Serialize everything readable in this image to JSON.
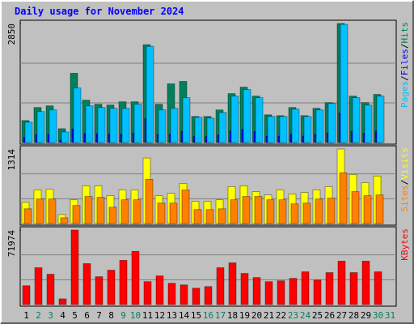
{
  "title": "Daily usage for November 2024",
  "legend_separator": "/",
  "chart_data": [
    {
      "type": "bar",
      "ylim": [
        0,
        2850
      ],
      "yticks": [
        2850
      ],
      "gridlines": [
        950,
        1900
      ],
      "series": [
        {
          "name": "Hits",
          "color": "#00805c",
          "values": [
            527,
            839,
            878,
            332,
            1659,
            1015,
            917,
            898,
            976,
            976,
            2342,
            917,
            1406,
            1464,
            625,
            625,
            781,
            1171,
            1327,
            1112,
            664,
            644,
            839,
            644,
            820,
            957,
            2850,
            1112,
            957,
            1152,
            null
          ]
        },
        {
          "name": "Files",
          "color": "#0000ff",
          "values": [
            122,
            185,
            195,
            63,
            327,
            219,
            210,
            205,
            205,
            229,
            575,
            195,
            205,
            268,
            151,
            146,
            180,
            278,
            317,
            268,
            156,
            156,
            200,
            156,
            195,
            234,
            707,
            268,
            224,
            278,
            null
          ]
        },
        {
          "name": "Pages",
          "color": "#00c0ff",
          "values": [
            488,
            742,
            781,
            254,
            1308,
            878,
            839,
            820,
            820,
            917,
            2303,
            781,
            820,
            1074,
            605,
            586,
            722,
            1112,
            1269,
            1074,
            625,
            625,
            800,
            625,
            781,
            937,
            2830,
            1074,
            898,
            1113,
            null
          ]
        }
      ]
    },
    {
      "type": "bar",
      "ylim": [
        0,
        1314
      ],
      "yticks": [
        1314
      ],
      "gridlines": [
        438,
        876
      ],
      "series": [
        {
          "name": "Visits",
          "color": "#ffff00",
          "values": [
            375,
            592,
            606,
            159,
            419,
            664,
            664,
            491,
            592,
            592,
            1155,
            491,
            534,
            708,
            390,
            390,
            419,
            650,
            664,
            563,
            505,
            592,
            520,
            549,
            592,
            650,
            1314,
            866,
            722,
            838,
            null
          ]
        },
        {
          "name": "Sites",
          "color": "#ff8000",
          "values": [
            260,
            433,
            433,
            101,
            318,
            477,
            462,
            289,
            419,
            419,
            780,
            361,
            361,
            592,
            246,
            246,
            260,
            419,
            477,
            477,
            419,
            419,
            347,
            361,
            433,
            448,
            895,
            563,
            491,
            505,
            null
          ]
        }
      ]
    },
    {
      "type": "bar",
      "ylim": [
        0,
        71974
      ],
      "yticks": [
        71974
      ],
      "gridlines": [
        23991,
        47983
      ],
      "categories": [
        "1",
        "2",
        "3",
        "4",
        "5",
        "6",
        "7",
        "8",
        "9",
        "10",
        "11",
        "12",
        "13",
        "14",
        "15",
        "16",
        "17",
        "18",
        "19",
        "20",
        "21",
        "22",
        "23",
        "24",
        "25",
        "26",
        "27",
        "28",
        "29",
        "30",
        "31"
      ],
      "category_colors": [
        "#000000",
        "#00805c",
        "#00805c",
        "#000000",
        "#000000",
        "#000000",
        "#000000",
        "#000000",
        "#00805c",
        "#00805c",
        "#000000",
        "#000000",
        "#000000",
        "#000000",
        "#000000",
        "#00805c",
        "#00805c",
        "#000000",
        "#000000",
        "#000000",
        "#000000",
        "#000000",
        "#00805c",
        "#00805c",
        "#000000",
        "#000000",
        "#000000",
        "#000000",
        "#000000",
        "#00805c",
        "#00805c"
      ],
      "series": [
        {
          "name": "KBytes",
          "color": "#ff0000",
          "values": [
            18193,
            35595,
            29267,
            5537,
            71974,
            39550,
            26894,
            33222,
            42714,
            51415,
            22148,
            27685,
            20566,
            18984,
            15820,
            17402,
            35595,
            40341,
            30058,
            26103,
            22148,
            22939,
            25312,
            31640,
            23730,
            30849,
            41923,
            30849,
            41923,
            31640,
            null
          ]
        }
      ]
    }
  ]
}
